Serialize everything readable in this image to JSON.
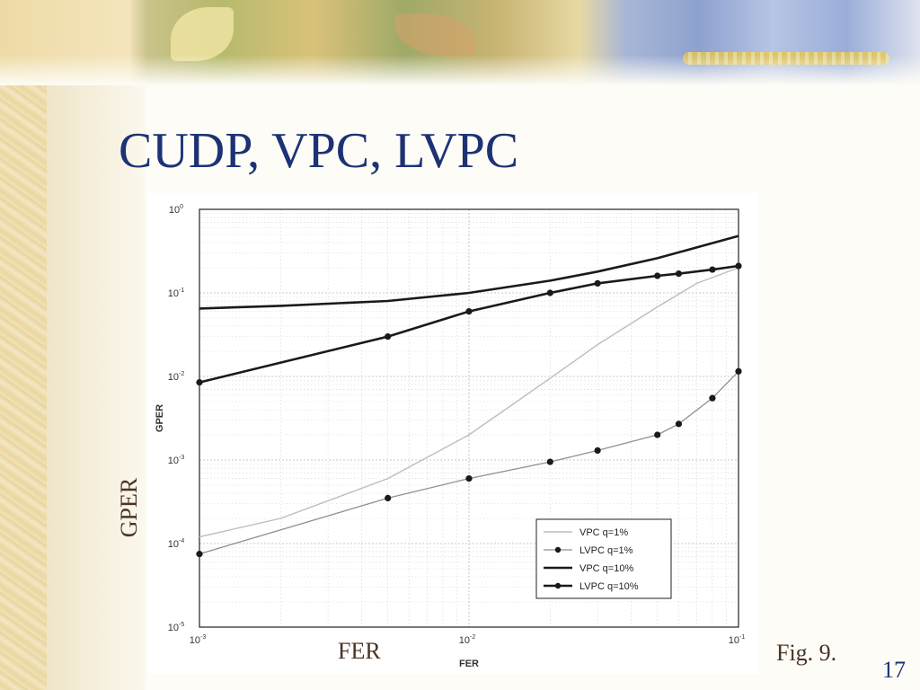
{
  "slide": {
    "title": "CUDP, VPC, LVPC",
    "gper_label": "GPER",
    "fer_label": "FER",
    "fig_caption": "Fig. 9.",
    "page_number": "17"
  },
  "colors": {
    "title": "#1d3275",
    "caption_text": "#4a3226",
    "page_number": "#1d3275"
  },
  "chart_data": {
    "type": "line",
    "xlabel": "FER",
    "ylabel": "GPER",
    "xscale": "log",
    "yscale": "log",
    "xlim": [
      0.001,
      0.1
    ],
    "ylim": [
      1e-05,
      1
    ],
    "x_ticks": [
      {
        "base": "10",
        "exp": "-3"
      },
      {
        "base": "10",
        "exp": "-2"
      },
      {
        "base": "10",
        "exp": "-1"
      }
    ],
    "y_ticks": [
      {
        "base": "10",
        "exp": "0"
      },
      {
        "base": "10",
        "exp": "-1"
      },
      {
        "base": "10",
        "exp": "-2"
      },
      {
        "base": "10",
        "exp": "-3"
      },
      {
        "base": "10",
        "exp": "-4"
      },
      {
        "base": "10",
        "exp": "-5"
      }
    ],
    "grid": true,
    "legend_position": "lower-right",
    "series": [
      {
        "name": "VPC q=1%",
        "style": "line",
        "color": "#bdbdbd",
        "x": [
          0.001,
          0.002,
          0.005,
          0.01,
          0.02,
          0.03,
          0.05,
          0.07,
          0.1
        ],
        "y": [
          0.00012,
          0.0002,
          0.0006,
          0.002,
          0.0095,
          0.024,
          0.068,
          0.13,
          0.2
        ]
      },
      {
        "name": "LVPC q=1%",
        "style": "line-marker",
        "color": "#909090",
        "x": [
          0.001,
          0.005,
          0.01,
          0.02,
          0.03,
          0.05,
          0.06,
          0.08,
          0.1
        ],
        "y": [
          7.5e-05,
          0.00035,
          0.0006,
          0.00095,
          0.0013,
          0.002,
          0.0027,
          0.0055,
          0.0115
        ]
      },
      {
        "name": "VPC q=10%",
        "style": "line",
        "color": "#1a1a1a",
        "x": [
          0.001,
          0.002,
          0.005,
          0.01,
          0.02,
          0.03,
          0.05,
          0.07,
          0.1
        ],
        "y": [
          0.065,
          0.07,
          0.08,
          0.1,
          0.14,
          0.18,
          0.26,
          0.35,
          0.48
        ]
      },
      {
        "name": "LVPC q=10%",
        "style": "line-marker",
        "color": "#1a1a1a",
        "x": [
          0.001,
          0.005,
          0.01,
          0.02,
          0.03,
          0.05,
          0.06,
          0.08,
          0.1
        ],
        "y": [
          0.0085,
          0.03,
          0.06,
          0.1,
          0.13,
          0.16,
          0.17,
          0.19,
          0.21
        ]
      }
    ]
  }
}
